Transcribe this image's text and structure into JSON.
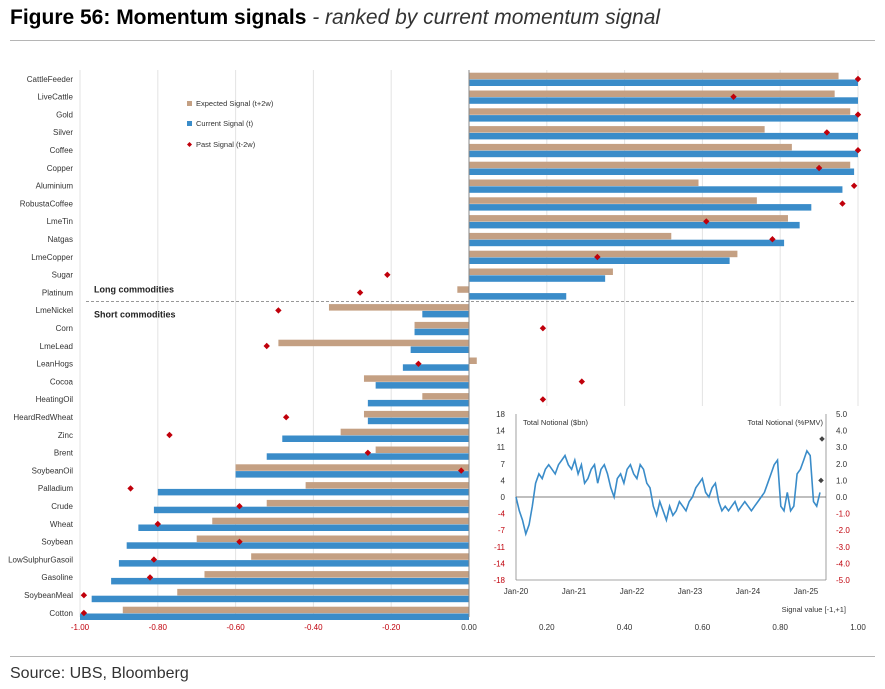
{
  "header": {
    "title_bold": "Figure 56: Momentum signals",
    "title_italic": " - ranked by current momentum signal"
  },
  "footer": {
    "source": "Source: UBS, Bloomberg"
  },
  "colors": {
    "expected": "#c4a083",
    "current": "#3a8cc9",
    "past": "#c0000b",
    "negative_tick": "#c0000b"
  },
  "chart_data": [
    {
      "type": "bar",
      "orientation": "horizontal",
      "categories": [
        "CattleFeeder",
        "LiveCattle",
        "Gold",
        "Silver",
        "Coffee",
        "Copper",
        "Aluminium",
        "RobustaCoffee",
        "LmeTin",
        "Natgas",
        "LmeCopper",
        "Sugar",
        "Platinum",
        "LmeNickel",
        "Corn",
        "LmeLead",
        "LeanHogs",
        "Cocoa",
        "HeatingOil",
        "HeardRedWheat",
        "Zinc",
        "Brent",
        "SoybeanOil",
        "Palladium",
        "Crude",
        "Wheat",
        "Soybean",
        "LowSulphurGasoil",
        "Gasoline",
        "SoybeanMeal",
        "Cotton"
      ],
      "series": [
        {
          "name": "Expected Signal (t+2w)",
          "values": [
            0.95,
            0.94,
            0.98,
            0.76,
            0.83,
            0.98,
            0.59,
            0.74,
            0.82,
            0.52,
            0.69,
            0.37,
            -0.03,
            -0.36,
            -0.14,
            -0.49,
            0.02,
            -0.27,
            -0.12,
            -0.27,
            -0.33,
            -0.24,
            -0.6,
            -0.42,
            -0.52,
            -0.66,
            -0.7,
            -0.56,
            -0.68,
            -0.75,
            -0.89
          ]
        },
        {
          "name": "Current Signal (t)",
          "values": [
            1.0,
            1.0,
            1.0,
            1.0,
            1.0,
            0.99,
            0.96,
            0.88,
            0.85,
            0.81,
            0.67,
            0.35,
            0.25,
            -0.12,
            -0.14,
            -0.15,
            -0.17,
            -0.24,
            -0.26,
            -0.26,
            -0.48,
            -0.52,
            -0.6,
            -0.8,
            -0.81,
            -0.85,
            -0.88,
            -0.9,
            -0.92,
            -0.97,
            -1.0
          ]
        },
        {
          "name": "Past Signal (t-2w)",
          "values": [
            1.0,
            0.68,
            1.0,
            0.92,
            1.0,
            0.9,
            0.99,
            0.96,
            0.61,
            0.78,
            0.33,
            -0.21,
            -0.28,
            -0.49,
            0.19,
            -0.52,
            -0.13,
            0.29,
            0.19,
            -0.47,
            -0.77,
            -0.26,
            -0.02,
            -0.87,
            -0.59,
            -0.8,
            -0.59,
            -0.81,
            -0.82,
            -0.99,
            -0.99
          ]
        }
      ],
      "xlim": [
        -1.0,
        1.0
      ],
      "xticks": [
        "-1.00",
        "-0.80",
        "-0.60",
        "-0.40",
        "-0.20",
        "0.00",
        "0.20",
        "0.40",
        "0.60",
        "0.80",
        "1.00"
      ],
      "annotations": [
        "Long commodities",
        "Short commodities"
      ],
      "legend_position": "top-left",
      "grid": true
    },
    {
      "type": "line",
      "xlabel": "Signal value [-1,+1]",
      "left_axis_label": "Total Notional ($bn)",
      "right_axis_label": "Total Notional (%PMV)",
      "x_ticks": [
        "Jan-20",
        "Jan-21",
        "Jan-22",
        "Jan-23",
        "Jan-24",
        "Jan-25"
      ],
      "left_ticks": [
        "18",
        "14",
        "11",
        "7",
        "4",
        "0",
        "-4",
        "-7",
        "-11",
        "-14",
        "-18"
      ],
      "right_ticks": [
        "5.0",
        "4.0",
        "3.0",
        "2.0",
        "1.0",
        "0.0",
        "-1.0",
        "-2.0",
        "-3.0",
        "-4.0",
        "-5.0"
      ],
      "ylim": [
        -18,
        18
      ],
      "y2lim": [
        -5,
        5
      ],
      "series": [
        {
          "values": [
            0,
            -3,
            -5,
            -8,
            -6,
            -2,
            3,
            5,
            4,
            6,
            7,
            6,
            5,
            7,
            8,
            9,
            7,
            6,
            8,
            5,
            7,
            3,
            4,
            6,
            7,
            3,
            6,
            7,
            5,
            2,
            0,
            4,
            5,
            3,
            6,
            7,
            5,
            4,
            7,
            6,
            3,
            2,
            -2,
            -4,
            -1,
            -3,
            -5,
            -2,
            -4,
            -3,
            -1,
            -2,
            -3,
            -1,
            0,
            2,
            3,
            4,
            1,
            0,
            2,
            3,
            -1,
            -3,
            -2,
            -3,
            -2,
            -1,
            -3,
            -2,
            -1,
            -2,
            -3,
            -2,
            -1,
            0,
            1,
            3,
            5,
            7,
            8,
            -2,
            -3,
            1,
            -3,
            -2,
            5,
            6,
            8,
            10,
            9,
            -1,
            -2,
            1
          ]
        }
      ],
      "markers": [
        {
          "value": 1.0
        },
        {
          "value": 3.5
        }
      ]
    }
  ]
}
